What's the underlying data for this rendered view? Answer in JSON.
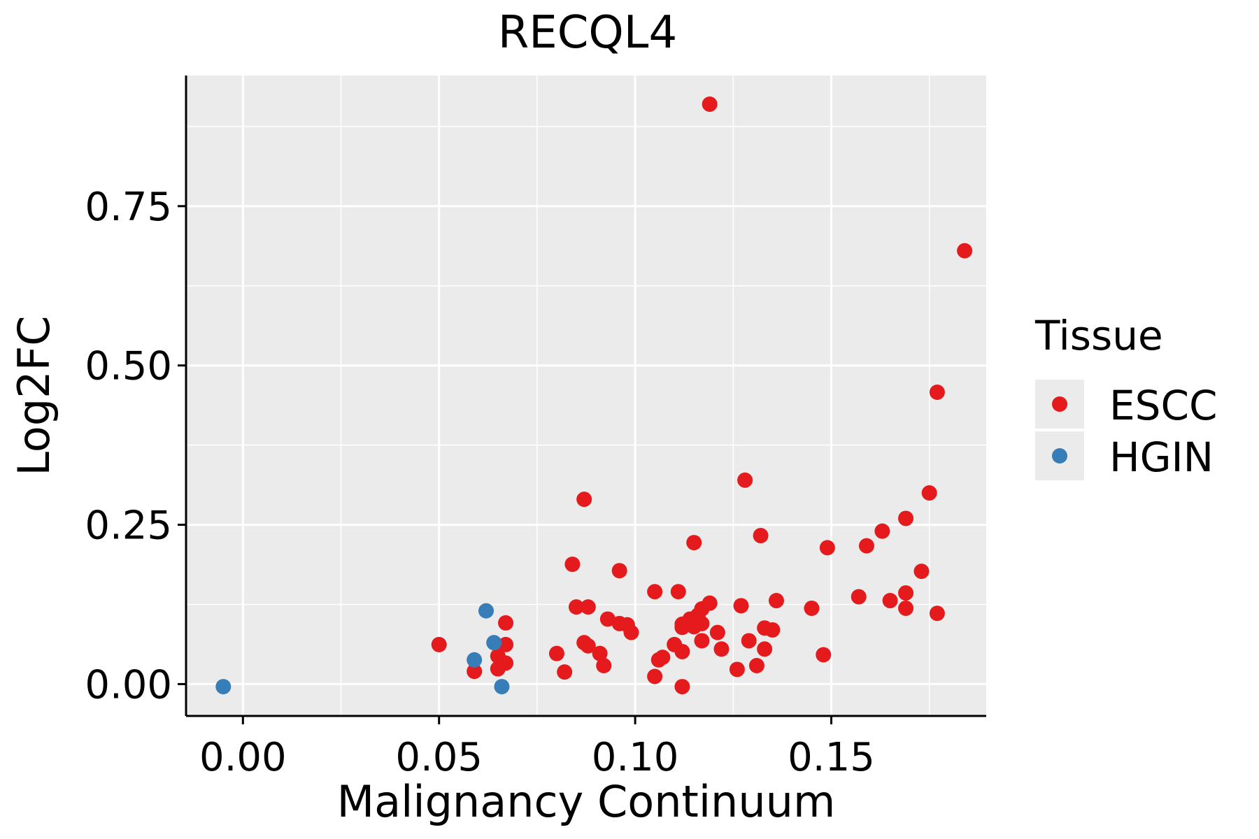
{
  "chart_data": {
    "type": "scatter",
    "title": "RECQL4",
    "xlabel": "Malignancy Continuum",
    "ylabel": "Log2FC",
    "xlim": [
      -0.0145,
      0.1895
    ],
    "ylim": [
      -0.05,
      0.955
    ],
    "x_ticks": [
      0.0,
      0.05,
      0.1,
      0.15
    ],
    "x_tick_labels": [
      "0.00",
      "0.05",
      "0.10",
      "0.15"
    ],
    "y_ticks": [
      0.0,
      0.25,
      0.5,
      0.75
    ],
    "y_tick_labels": [
      "0.00",
      "0.25",
      "0.50",
      "0.75"
    ],
    "grid": true,
    "legend": {
      "title": "Tissue",
      "position": "right"
    },
    "series": [
      {
        "name": "ESCC",
        "color": "#E41A1C",
        "points": [
          [
            0.119,
            0.91
          ],
          [
            0.184,
            0.68
          ],
          [
            0.177,
            0.458
          ],
          [
            0.128,
            0.32
          ],
          [
            0.175,
            0.3
          ],
          [
            0.087,
            0.29
          ],
          [
            0.169,
            0.26
          ],
          [
            0.163,
            0.24
          ],
          [
            0.132,
            0.233
          ],
          [
            0.115,
            0.222
          ],
          [
            0.159,
            0.217
          ],
          [
            0.149,
            0.214
          ],
          [
            0.084,
            0.188
          ],
          [
            0.096,
            0.178
          ],
          [
            0.173,
            0.177
          ],
          [
            0.105,
            0.145
          ],
          [
            0.111,
            0.145
          ],
          [
            0.169,
            0.143
          ],
          [
            0.157,
            0.137
          ],
          [
            0.165,
            0.131
          ],
          [
            0.136,
            0.131
          ],
          [
            0.119,
            0.127
          ],
          [
            0.085,
            0.121
          ],
          [
            0.088,
            0.121
          ],
          [
            0.127,
            0.123
          ],
          [
            0.117,
            0.118
          ],
          [
            0.145,
            0.119
          ],
          [
            0.169,
            0.119
          ],
          [
            0.177,
            0.111
          ],
          [
            0.116,
            0.108
          ],
          [
            0.114,
            0.102
          ],
          [
            0.093,
            0.102
          ],
          [
            0.067,
            0.096
          ],
          [
            0.096,
            0.095
          ],
          [
            0.098,
            0.093
          ],
          [
            0.112,
            0.094
          ],
          [
            0.117,
            0.095
          ],
          [
            0.115,
            0.09
          ],
          [
            0.112,
            0.089
          ],
          [
            0.133,
            0.088
          ],
          [
            0.135,
            0.085
          ],
          [
            0.099,
            0.081
          ],
          [
            0.121,
            0.081
          ],
          [
            0.05,
            0.062
          ],
          [
            0.067,
            0.062
          ],
          [
            0.087,
            0.065
          ],
          [
            0.088,
            0.06
          ],
          [
            0.117,
            0.068
          ],
          [
            0.129,
            0.068
          ],
          [
            0.11,
            0.062
          ],
          [
            0.122,
            0.055
          ],
          [
            0.133,
            0.055
          ],
          [
            0.08,
            0.048
          ],
          [
            0.091,
            0.048
          ],
          [
            0.112,
            0.051
          ],
          [
            0.148,
            0.046
          ],
          [
            0.065,
            0.044
          ],
          [
            0.107,
            0.042
          ],
          [
            0.106,
            0.038
          ],
          [
            0.067,
            0.033
          ],
          [
            0.092,
            0.029
          ],
          [
            0.131,
            0.029
          ],
          [
            0.126,
            0.023
          ],
          [
            0.065,
            0.024
          ],
          [
            0.059,
            0.02
          ],
          [
            0.082,
            0.019
          ],
          [
            0.105,
            0.012
          ],
          [
            0.112,
            -0.004
          ]
        ]
      },
      {
        "name": "HGIN",
        "color": "#377EB8",
        "points": [
          [
            -0.005,
            -0.004
          ],
          [
            0.062,
            0.115
          ],
          [
            0.064,
            0.065
          ],
          [
            0.059,
            0.038
          ],
          [
            0.066,
            -0.004
          ]
        ]
      }
    ]
  }
}
